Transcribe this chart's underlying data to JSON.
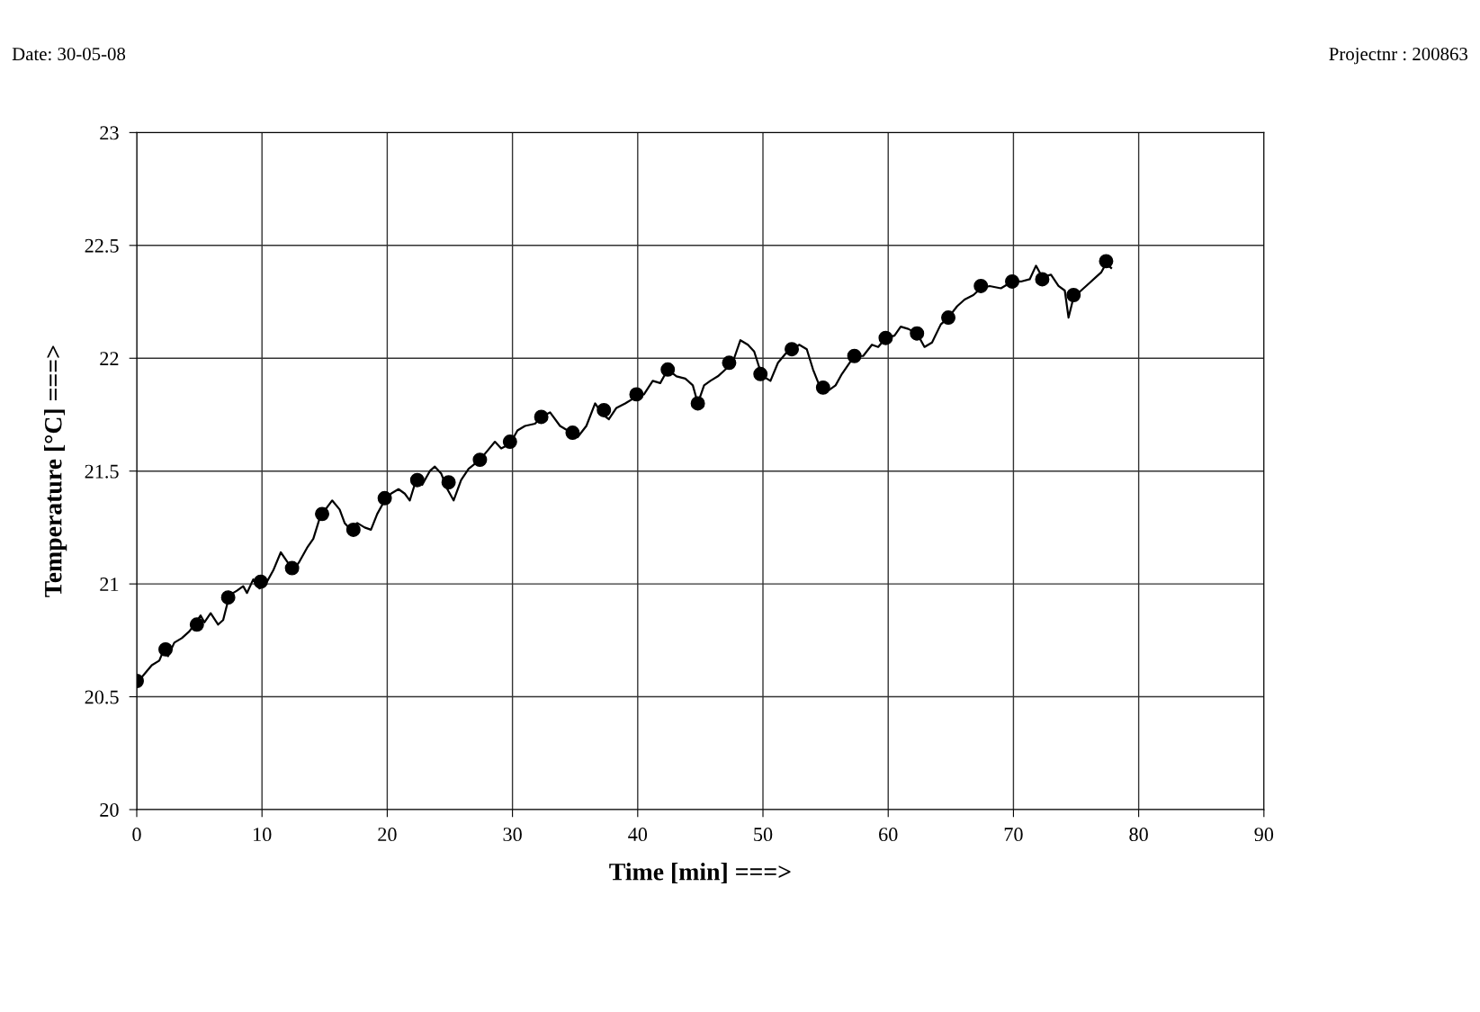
{
  "chart_data": {
    "type": "line",
    "xlabel": "Time [min] ===>",
    "ylabel": "Temperature [°C] ===>",
    "annotations": [
      "Date: 30-05-08",
      "Projectnr : 200863"
    ],
    "xlim": [
      0,
      90
    ],
    "xticks": [
      0,
      10,
      20,
      30,
      40,
      50,
      60,
      70,
      80,
      90
    ],
    "ylim": [
      20,
      23
    ],
    "yticks": [
      20,
      20.5,
      21,
      21.5,
      22,
      22.5,
      23
    ],
    "grid": true,
    "legend": false,
    "series": [
      {
        "color": "#000000",
        "marker": "none",
        "line_style": "solid",
        "x": [
          0,
          0.6,
          1.2,
          1.8,
          2.1,
          2.5,
          3.0,
          3.6,
          4.2,
          4.6,
          5.1,
          5.4,
          5.9,
          6.5,
          6.9,
          7.4,
          8.0,
          8.5,
          8.8,
          9.3,
          9.8,
          10.3,
          10.9,
          11.5,
          12.0,
          12.5,
          13.0,
          13.6,
          14.1,
          14.6,
          15.2,
          15.6,
          16.2,
          16.6,
          17.1,
          17.6,
          18.2,
          18.7,
          19.2,
          19.7,
          20.3,
          20.9,
          21.4,
          21.8,
          22.3,
          22.8,
          23.4,
          23.8,
          24.3,
          24.8,
          25.3,
          25.9,
          26.5,
          27.4,
          28.0,
          28.6,
          29.1,
          29.8,
          30.4,
          31.0,
          31.8,
          32.3,
          33.0,
          33.8,
          34.4,
          35.2,
          35.9,
          36.6,
          37.2,
          37.7,
          38.3,
          39.0,
          39.9,
          40.5,
          41.2,
          41.8,
          42.4,
          43.1,
          43.8,
          44.4,
          44.8,
          45.3,
          45.8,
          46.4,
          47.0,
          47.7,
          48.2,
          48.8,
          49.3,
          49.7,
          50.0,
          50.6,
          51.2,
          51.8,
          52.3,
          52.9,
          53.5,
          54.0,
          54.5,
          55.3,
          55.8,
          56.3,
          57.3,
          58.0,
          58.7,
          59.2,
          59.8,
          60.5,
          61.0,
          61.6,
          62.3,
          62.9,
          63.5,
          64.2,
          64.8,
          65.5,
          66.1,
          66.8,
          67.4,
          68.1,
          69.0,
          69.9,
          70.6,
          71.3,
          71.8,
          72.3,
          73.0,
          73.6,
          74.1,
          74.4,
          74.8,
          75.4,
          76.0,
          76.6,
          77.0,
          77.4,
          77.8
        ],
        "values": [
          20.56,
          20.6,
          20.64,
          20.66,
          20.7,
          20.68,
          20.74,
          20.76,
          20.79,
          20.82,
          20.86,
          20.83,
          20.87,
          20.82,
          20.84,
          20.95,
          20.97,
          20.99,
          20.96,
          21.02,
          20.98,
          21.0,
          21.06,
          21.14,
          21.1,
          21.06,
          21.1,
          21.16,
          21.2,
          21.29,
          21.34,
          21.37,
          21.33,
          21.27,
          21.24,
          21.27,
          21.25,
          21.24,
          21.31,
          21.36,
          21.4,
          21.42,
          21.4,
          21.37,
          21.46,
          21.44,
          21.5,
          21.52,
          21.49,
          21.42,
          21.37,
          21.46,
          21.51,
          21.55,
          21.59,
          21.63,
          21.6,
          21.62,
          21.68,
          21.7,
          21.71,
          21.74,
          21.76,
          21.7,
          21.68,
          21.65,
          21.7,
          21.8,
          21.75,
          21.73,
          21.78,
          21.8,
          21.83,
          21.84,
          21.9,
          21.89,
          21.95,
          21.92,
          21.91,
          21.88,
          21.8,
          21.88,
          21.9,
          21.92,
          21.95,
          22.0,
          22.08,
          22.06,
          22.03,
          21.96,
          21.92,
          21.9,
          21.98,
          22.02,
          22.04,
          22.06,
          22.04,
          21.95,
          21.88,
          21.86,
          21.88,
          21.93,
          22.01,
          22.01,
          22.06,
          22.05,
          22.09,
          22.1,
          22.14,
          22.13,
          22.11,
          22.05,
          22.07,
          22.15,
          22.18,
          22.23,
          22.26,
          22.28,
          22.31,
          22.32,
          22.31,
          22.34,
          22.34,
          22.35,
          22.41,
          22.36,
          22.37,
          22.32,
          22.3,
          22.18,
          22.27,
          22.3,
          22.33,
          22.36,
          22.38,
          22.42,
          22.4
        ]
      },
      {
        "type": "scatter",
        "color": "#000000",
        "marker": "circle",
        "x": [
          0,
          2.3,
          4.8,
          7.3,
          9.9,
          12.4,
          14.8,
          17.3,
          19.8,
          22.4,
          24.9,
          27.4,
          29.8,
          32.3,
          34.8,
          37.3,
          39.9,
          42.4,
          44.8,
          47.3,
          49.8,
          52.3,
          54.8,
          57.3,
          59.8,
          62.3,
          64.8,
          67.4,
          69.9,
          72.3,
          74.8,
          77.4
        ],
        "values": [
          20.57,
          20.71,
          20.82,
          20.94,
          21.01,
          21.07,
          21.31,
          21.24,
          21.38,
          21.46,
          21.45,
          21.55,
          21.63,
          21.74,
          21.67,
          21.77,
          21.84,
          21.95,
          21.8,
          21.98,
          21.93,
          22.04,
          21.87,
          22.01,
          22.09,
          22.11,
          22.18,
          22.32,
          22.34,
          22.35,
          22.28,
          22.43
        ]
      }
    ]
  }
}
